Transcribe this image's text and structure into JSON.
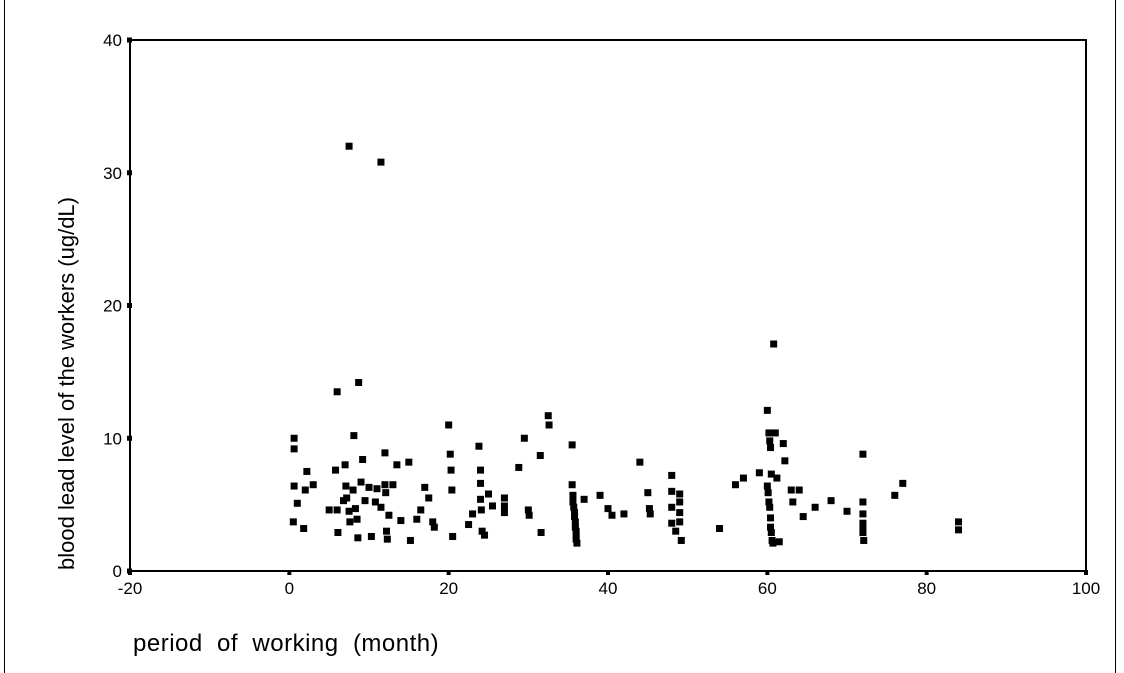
{
  "chart_data": {
    "type": "scatter",
    "title": "",
    "xlabel": "period  of  working  (month)",
    "ylabel": "blood lead level of the workers (ug/dL)",
    "xlim": [
      -20,
      100
    ],
    "ylim": [
      0,
      40
    ],
    "x_ticks": [
      "-20",
      "0",
      "20",
      "40",
      "60",
      "80",
      "100"
    ],
    "y_ticks": [
      "0",
      "10",
      "20",
      "30",
      "40"
    ],
    "marker_color": "#000000",
    "grid": false,
    "points": [
      [
        7.5,
        32.0
      ],
      [
        11.5,
        30.8
      ],
      [
        60.8,
        17.1
      ],
      [
        8.7,
        14.2
      ],
      [
        6.0,
        13.5
      ],
      [
        0.6,
        10.0
      ],
      [
        0.6,
        9.2
      ],
      [
        0.6,
        6.4
      ],
      [
        1.0,
        5.1
      ],
      [
        0.5,
        3.7
      ],
      [
        1.8,
        3.2
      ],
      [
        2.0,
        6.1
      ],
      [
        2.2,
        7.5
      ],
      [
        3.0,
        6.5
      ],
      [
        5.0,
        4.6
      ],
      [
        5.8,
        7.6
      ],
      [
        6.0,
        4.6
      ],
      [
        6.1,
        2.9
      ],
      [
        6.8,
        5.3
      ],
      [
        7.0,
        8.0
      ],
      [
        7.1,
        6.4
      ],
      [
        7.2,
        5.5
      ],
      [
        7.5,
        4.5
      ],
      [
        7.6,
        3.7
      ],
      [
        8.0,
        6.1
      ],
      [
        8.1,
        10.2
      ],
      [
        8.3,
        4.7
      ],
      [
        8.5,
        3.9
      ],
      [
        8.6,
        2.5
      ],
      [
        9.0,
        6.7
      ],
      [
        9.2,
        8.4
      ],
      [
        9.5,
        5.3
      ],
      [
        10.0,
        6.3
      ],
      [
        10.3,
        2.6
      ],
      [
        10.8,
        5.2
      ],
      [
        11.0,
        6.2
      ],
      [
        11.5,
        4.8
      ],
      [
        12.0,
        8.9
      ],
      [
        12.0,
        6.5
      ],
      [
        12.1,
        5.9
      ],
      [
        12.2,
        3.0
      ],
      [
        12.3,
        2.4
      ],
      [
        12.5,
        4.2
      ],
      [
        13.0,
        6.5
      ],
      [
        13.5,
        8.0
      ],
      [
        14.0,
        3.8
      ],
      [
        15.0,
        8.2
      ],
      [
        15.2,
        2.3
      ],
      [
        16.0,
        3.9
      ],
      [
        16.5,
        4.6
      ],
      [
        17.0,
        6.3
      ],
      [
        17.5,
        5.5
      ],
      [
        18.0,
        3.7
      ],
      [
        18.2,
        3.3
      ],
      [
        20.0,
        11.0
      ],
      [
        20.2,
        8.8
      ],
      [
        20.3,
        7.6
      ],
      [
        20.4,
        6.1
      ],
      [
        20.5,
        2.6
      ],
      [
        22.5,
        3.5
      ],
      [
        23.0,
        4.3
      ],
      [
        23.8,
        9.4
      ],
      [
        24.0,
        7.6
      ],
      [
        24.0,
        6.6
      ],
      [
        24.0,
        5.4
      ],
      [
        24.1,
        4.6
      ],
      [
        24.2,
        3.0
      ],
      [
        24.5,
        2.7
      ],
      [
        25.0,
        5.8
      ],
      [
        25.5,
        4.9
      ],
      [
        27.0,
        5.5
      ],
      [
        27.0,
        4.9
      ],
      [
        27.0,
        4.4
      ],
      [
        28.8,
        7.8
      ],
      [
        29.5,
        10.0
      ],
      [
        30.0,
        4.6
      ],
      [
        30.1,
        4.2
      ],
      [
        31.5,
        8.7
      ],
      [
        31.6,
        2.9
      ],
      [
        32.5,
        11.7
      ],
      [
        32.6,
        11.0
      ],
      [
        35.5,
        9.5
      ],
      [
        35.5,
        6.5
      ],
      [
        35.6,
        5.7
      ],
      [
        35.6,
        5.2
      ],
      [
        35.7,
        4.8
      ],
      [
        35.8,
        4.4
      ],
      [
        35.8,
        4.1
      ],
      [
        35.9,
        3.7
      ],
      [
        35.9,
        3.3
      ],
      [
        36.0,
        3.0
      ],
      [
        36.0,
        2.7
      ],
      [
        36.0,
        2.4
      ],
      [
        36.1,
        2.1
      ],
      [
        37.0,
        5.4
      ],
      [
        39.0,
        5.7
      ],
      [
        40.0,
        4.7
      ],
      [
        40.5,
        4.2
      ],
      [
        42.0,
        4.3
      ],
      [
        44.0,
        8.2
      ],
      [
        45.0,
        5.9
      ],
      [
        45.2,
        4.7
      ],
      [
        45.3,
        4.3
      ],
      [
        48.0,
        7.2
      ],
      [
        48.0,
        6.0
      ],
      [
        48.0,
        4.8
      ],
      [
        48.0,
        3.6
      ],
      [
        48.5,
        3.0
      ],
      [
        49.0,
        5.8
      ],
      [
        49.0,
        5.2
      ],
      [
        49.0,
        4.4
      ],
      [
        49.0,
        3.7
      ],
      [
        49.2,
        2.3
      ],
      [
        54.0,
        3.2
      ],
      [
        56.0,
        6.5
      ],
      [
        57.0,
        7.0
      ],
      [
        59.0,
        7.4
      ],
      [
        60.0,
        12.1
      ],
      [
        60.2,
        10.4
      ],
      [
        60.3,
        9.8
      ],
      [
        60.4,
        9.3
      ],
      [
        60.5,
        7.3
      ],
      [
        60.0,
        6.4
      ],
      [
        60.1,
        5.9
      ],
      [
        60.2,
        5.2
      ],
      [
        60.3,
        4.8
      ],
      [
        60.4,
        4.0
      ],
      [
        60.4,
        3.3
      ],
      [
        60.5,
        2.9
      ],
      [
        60.6,
        2.3
      ],
      [
        60.7,
        2.1
      ],
      [
        61.0,
        10.4
      ],
      [
        61.2,
        7.0
      ],
      [
        61.5,
        2.2
      ],
      [
        62.0,
        9.6
      ],
      [
        62.2,
        8.3
      ],
      [
        63.0,
        6.1
      ],
      [
        63.2,
        5.2
      ],
      [
        64.0,
        6.1
      ],
      [
        64.5,
        4.1
      ],
      [
        66.0,
        4.8
      ],
      [
        68.0,
        5.3
      ],
      [
        70.0,
        4.5
      ],
      [
        72.0,
        8.8
      ],
      [
        72.0,
        5.2
      ],
      [
        72.0,
        4.3
      ],
      [
        72.0,
        3.6
      ],
      [
        72.0,
        3.2
      ],
      [
        72.0,
        2.9
      ],
      [
        72.1,
        2.3
      ],
      [
        76.0,
        5.7
      ],
      [
        77.0,
        6.6
      ],
      [
        84.0,
        3.7
      ],
      [
        84.0,
        3.1
      ]
    ]
  }
}
